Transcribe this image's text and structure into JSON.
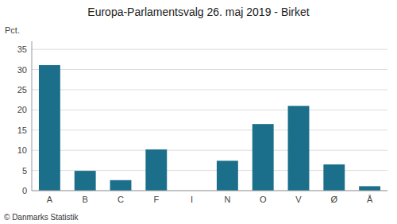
{
  "chart_data": {
    "type": "bar",
    "title": "Europa-Parlamentsvalg 26. maj 2019 - Birket",
    "ylabel": "Pct.",
    "footer": "© Danmarks Statistik",
    "categories": [
      "A",
      "B",
      "C",
      "F",
      "I",
      "N",
      "O",
      "V",
      "Ø",
      "Å"
    ],
    "values": [
      31.1,
      4.9,
      2.6,
      10.2,
      0.0,
      7.4,
      16.5,
      21.0,
      6.5,
      1.1
    ],
    "color": "#1b6f8a",
    "ylim": [
      0,
      37
    ],
    "yticks": [
      0,
      5,
      10,
      15,
      20,
      25,
      30,
      35
    ],
    "grid": true
  }
}
